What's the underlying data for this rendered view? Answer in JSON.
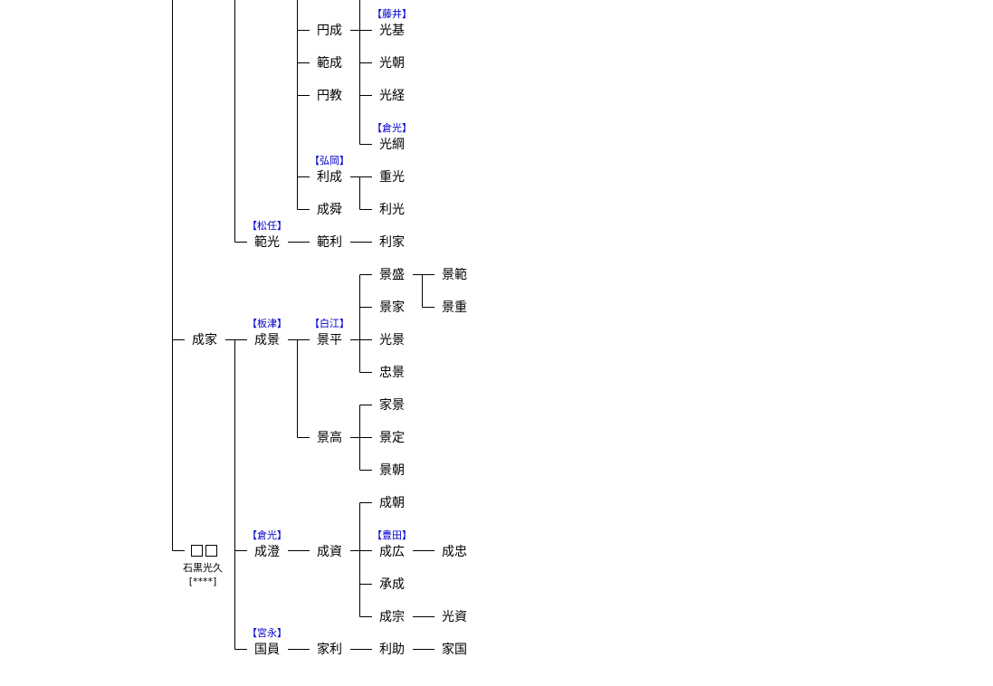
{
  "persons": {
    "enjo": "円成",
    "hanjo": "範成",
    "enkyo": "円教",
    "mitsumoto": "光基",
    "mitsutomo": "光朝",
    "mitsutsune": "光経",
    "mitsutsuna": "光綱",
    "toshinari": "利成",
    "narikiyo": "成舜",
    "shigemitsu": "重光",
    "toshimitsu": "利光",
    "norimitsu": "範光",
    "noritoshi": "範利",
    "toshiie": "利家",
    "kagemori": "景盛",
    "kagenori": "景範",
    "kageie": "景家",
    "kageshige": "景重",
    "nariie": "成家",
    "narikage": "成景",
    "kagehira": "景平",
    "mitsukage": "光景",
    "tadakage": "忠景",
    "iekage": "家景",
    "kagetaka": "景高",
    "kagesada": "景定",
    "kagetomo": "景朝",
    "naritomo": "成朝",
    "unknown": "□□",
    "narizumi": "成澄",
    "narisuke": "成資",
    "narihiro": "成広",
    "naritada": "成忠",
    "shonari": "承成",
    "narimune": "成宗",
    "mitsusuke": "光資",
    "kunikazu": "国員",
    "ietoshi": "家利",
    "toshisuke": "利助",
    "iekuni": "家国"
  },
  "clans": {
    "fujii": "【藤井】",
    "kuramitsu_1": "【倉光】",
    "hiraoka": "【弘岡】",
    "matsuto": "【松任】",
    "itatsu": "【板津】",
    "shirae": "【白江】",
    "toyoda": "【豊田】",
    "kuramitsu_2": "【倉光】",
    "miyanaga": "【宮永】"
  },
  "notes": {
    "ishiguro": "石黒光久",
    "stars": "[****]"
  },
  "colors": {
    "name_text": "#000000",
    "clan_text": "#0000cc",
    "line": "#000000",
    "background": "#ffffff"
  }
}
